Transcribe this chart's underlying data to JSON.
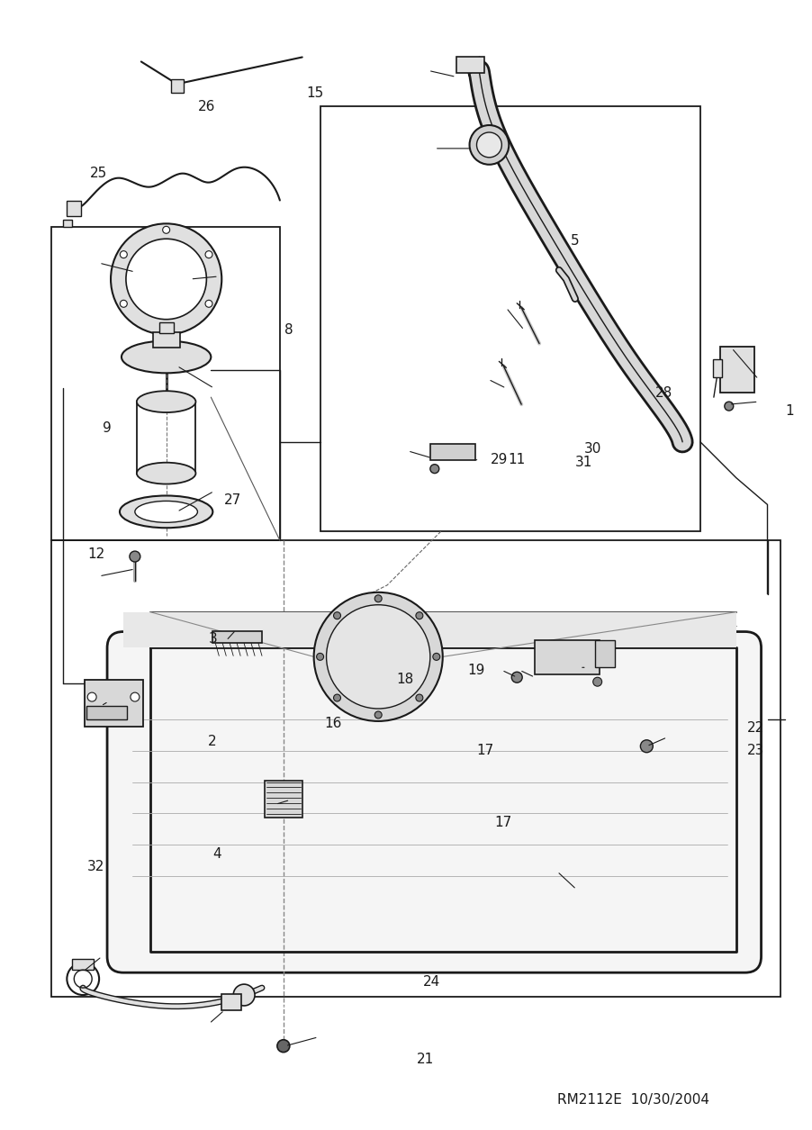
{
  "bg": "#ffffff",
  "black": "#1a1a1a",
  "gray": "#aaaaaa",
  "lgray": "#e0e0e0",
  "footer": "RM2112E  10/30/2004"
}
